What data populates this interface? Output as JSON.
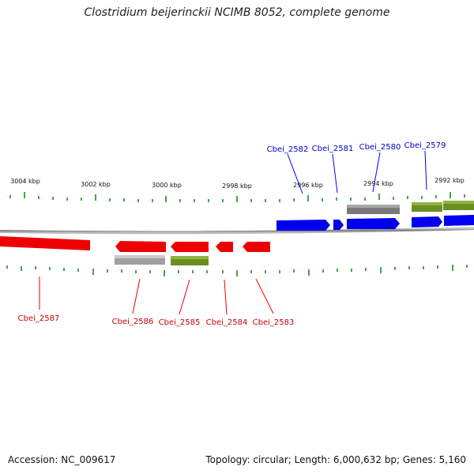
{
  "title": "Clostridium beijerinckii NCIMB 8052, complete genome",
  "footer": {
    "accession": "Accession: NC_009617",
    "summary": "Topology: circular; Length: 6,000,632 bp; Genes: 5,160"
  },
  "colors": {
    "forward_gene": "#0000ee",
    "reverse_gene": "#ee0000",
    "gray_feature": "#888888",
    "green_feature": "#6b8e23",
    "tick": "#1a8c1a",
    "backbone": "#888888"
  },
  "ruler": [
    {
      "label": "3004 kbp"
    },
    {
      "label": "3002 kbp"
    },
    {
      "label": "3000 kbp"
    },
    {
      "label": "2998 kbp"
    },
    {
      "label": "2996 kbp"
    },
    {
      "label": "2994 kbp"
    },
    {
      "label": "2992 kbp"
    }
  ],
  "genes_forward": [
    {
      "name": "Cbei_2582"
    },
    {
      "name": "Cbei_2581"
    },
    {
      "name": "Cbei_2580"
    },
    {
      "name": "Cbei_2579"
    }
  ],
  "genes_reverse": [
    {
      "name": "Cbei_2587"
    },
    {
      "name": "Cbei_2586"
    },
    {
      "name": "Cbei_2585"
    },
    {
      "name": "Cbei_2584"
    },
    {
      "name": "Cbei_2583"
    }
  ]
}
